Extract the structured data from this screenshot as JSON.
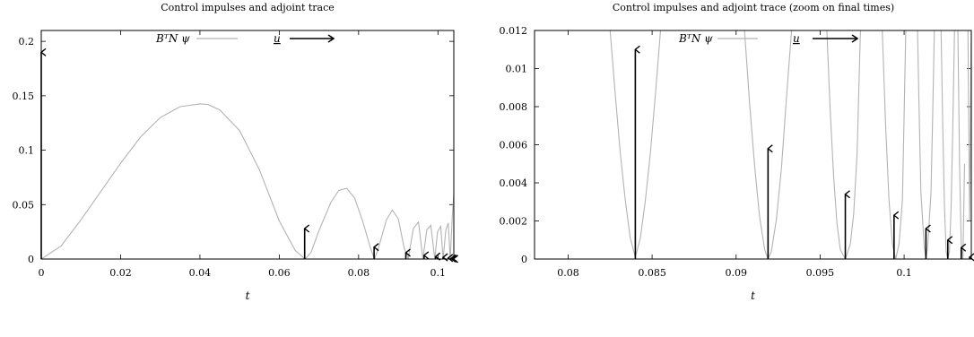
{
  "charts": [
    {
      "title": "Control impulses and adjoint trace",
      "legend": {
        "trace_label": "BᵀN ψ",
        "control_label": "u"
      },
      "chart_data": {
        "type": "line",
        "title": "Control impulses and adjoint trace",
        "xlabel": "t",
        "ylabel": "",
        "xlim": [
          0,
          0.104
        ],
        "ylim": [
          0,
          0.21
        ],
        "xticks": [
          0,
          0.02,
          0.04,
          0.06,
          0.08,
          0.1
        ],
        "xtick_labels": [
          "0",
          "0.02",
          "0.04",
          "0.06",
          "0.08",
          "0.1"
        ],
        "yticks": [
          0,
          0.05,
          0.1,
          0.15,
          0.2
        ],
        "ytick_labels": [
          "0",
          "0.05",
          "0.1",
          "0.15",
          "0.2"
        ],
        "grid": false,
        "legend_position": "top-center",
        "series": [
          {
            "name": "B_N^T psi",
            "style": "curve",
            "color": "#b3b3b3",
            "x": [
              0,
              0.005,
              0.01,
              0.015,
              0.02,
              0.025,
              0.03,
              0.035,
              0.04,
              0.042,
              0.045,
              0.05,
              0.055,
              0.06,
              0.064,
              0.0665,
              0.068,
              0.07,
              0.073,
              0.075,
              0.077,
              0.079,
              0.081,
              0.083,
              0.084,
              0.085,
              0.087,
              0.0885,
              0.09,
              0.0915,
              0.0925,
              0.0938,
              0.0951,
              0.0962,
              0.0972,
              0.0982,
              0.0992,
              0.0999,
              0.1007,
              0.1013,
              0.102,
              0.1026,
              0.1031,
              0.1036,
              0.104
            ],
            "y": [
              0,
              0.012,
              0.036,
              0.062,
              0.088,
              0.112,
              0.13,
              0.14,
              0.1425,
              0.142,
              0.137,
              0.118,
              0.082,
              0.035,
              0.008,
              0,
              0.006,
              0.026,
              0.052,
              0.063,
              0.065,
              0.056,
              0.035,
              0.01,
              0,
              0.01,
              0.036,
              0.045,
              0.037,
              0.01,
              0,
              0.028,
              0.034,
              0,
              0.027,
              0.031,
              0,
              0.025,
              0.03,
              0,
              0.027,
              0.033,
              0,
              0.038,
              0.06
            ]
          },
          {
            "name": "u",
            "style": "impulses",
            "color": "#000000",
            "x": [
              0,
              0.0664,
              0.0839,
              0.0919,
              0.0965,
              0.0994,
              0.1013,
              0.1026,
              0.1033,
              0.1037,
              0.1039
            ],
            "y": [
              0.19,
              0.028,
              0.011,
              0.0058,
              0.0034,
              0.0023,
              0.0016,
              0.001,
              0.0006,
              0.0003,
              0.0001
            ]
          }
        ]
      }
    },
    {
      "title": "Control impulses and adjoint trace (zoom on final times)",
      "legend": {
        "trace_label": "BᵀN ψ",
        "control_label": "u"
      },
      "chart_data": {
        "type": "line",
        "title": "Control impulses and adjoint trace (zoom on final times)",
        "xlabel": "t",
        "ylabel": "",
        "xlim": [
          0.078,
          0.104
        ],
        "ylim": [
          0,
          0.012
        ],
        "xticks": [
          0.08,
          0.085,
          0.09,
          0.095,
          0.1
        ],
        "xtick_labels": [
          "0.08",
          "0.085",
          "0.09",
          "0.095",
          "0.1"
        ],
        "yticks": [
          0,
          0.002,
          0.004,
          0.006,
          0.008,
          0.01,
          0.012
        ],
        "ytick_labels": [
          "0",
          "0.002",
          "0.004",
          "0.006",
          "0.008",
          "0.01",
          "0.012"
        ],
        "grid": false,
        "legend_position": "top-center",
        "series": [
          {
            "name": "B_N^T psi",
            "style": "curve",
            "color": "#b3b3b3",
            "x": [
              0.0825,
              0.0828,
              0.0831,
              0.0834,
              0.0837,
              0.084,
              0.0843,
              0.0846,
              0.0849,
              0.0852,
              0.0855,
              0.0855,
              0.0905,
              0.0908,
              0.0911,
              0.0914,
              0.0917,
              0.0919,
              0.0921,
              0.0924,
              0.0927,
              0.093,
              0.0933,
              0.0933,
              0.0954,
              0.0956,
              0.0958,
              0.096,
              0.0962,
              0.0965,
              0.0968,
              0.097,
              0.0972,
              0.0974,
              0.0974,
              0.0987,
              0.0989,
              0.0991,
              0.0993,
              0.0995,
              0.0997,
              0.0999,
              0.1001,
              0.1001,
              0.1008,
              0.1009,
              0.101,
              0.1012,
              0.1013,
              0.1014,
              0.1016,
              0.1017,
              0.1018,
              0.1018,
              0.1022,
              0.1023,
              0.1024,
              0.1025,
              0.1026,
              0.1027,
              0.1028,
              0.1029,
              0.103,
              0.103,
              0.1032,
              0.1033,
              0.1034,
              0.1035,
              0.1036,
              0.1036,
              0.1038,
              0.1039,
              0.104
            ],
            "y": [
              0.012,
              0.0087,
              0.0056,
              0.0031,
              0.0011,
              0.0001,
              0.0011,
              0.0031,
              0.0056,
              0.0087,
              0.012,
              null,
              0.012,
              0.0082,
              0.0049,
              0.0022,
              0.0005,
              0,
              0.0004,
              0.0021,
              0.0048,
              0.0085,
              0.012,
              null,
              0.012,
              0.0078,
              0.0044,
              0.0019,
              0.0005,
              0,
              0.0008,
              0.0024,
              0.0055,
              0.012,
              null,
              0.012,
              0.007,
              0.0031,
              0.0008,
              0,
              0.0008,
              0.0031,
              0.012,
              null,
              0.012,
              0.0075,
              0.0035,
              0.0006,
              0,
              0.0006,
              0.0035,
              0.0075,
              0.012,
              null,
              0.012,
              0.007,
              0.0028,
              0.0004,
              0,
              0.0004,
              0.0028,
              0.007,
              0.012,
              null,
              0.012,
              0.005,
              0.0008,
              0,
              0.005,
              null,
              0.012,
              0.002,
              0.012
            ]
          },
          {
            "name": "u",
            "style": "impulses",
            "color": "#000000",
            "x": [
              0.084,
              0.0919,
              0.0965,
              0.0994,
              0.1013,
              0.1026,
              0.1034,
              0.1039
            ],
            "y": [
              0.011,
              0.0058,
              0.0034,
              0.0023,
              0.0016,
              0.001,
              0.0006,
              0.0001
            ]
          }
        ]
      }
    }
  ]
}
